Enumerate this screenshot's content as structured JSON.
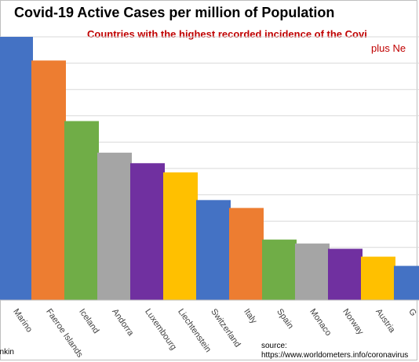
{
  "chart_data": {
    "type": "bar",
    "title": "Covid-19 Active Cases per million of Population",
    "subtitle": "Countries with  the highest recorded incidence of the Covi",
    "subtitle2": "plus Ne",
    "categories": [
      "Marino",
      "Faeroe Islands",
      "Iceland",
      "Andorra",
      "Luxembourg",
      "Liechtenstein",
      "Switzerland",
      "Italy",
      "Spain",
      "Monaco",
      "Norway",
      "Austria",
      "G"
    ],
    "values": [
      1000,
      910,
      680,
      560,
      520,
      485,
      380,
      350,
      230,
      215,
      195,
      165,
      130
    ],
    "colors": [
      "#4472c4",
      "#ed7d31",
      "#70ad47",
      "#a5a5a5",
      "#7030a0",
      "#ffc000",
      "#4472c4",
      "#ed7d31",
      "#70ad47",
      "#a5a5a5",
      "#7030a0",
      "#ffc000",
      "#4472c4"
    ],
    "ylim": [
      0,
      1100
    ],
    "grid": true,
    "legend": "none",
    "xlabel": "",
    "ylabel": ""
  },
  "author": "ankin",
  "source_line1": "source:",
  "source_line2": "https://www.worldometers.info/coronavirus"
}
